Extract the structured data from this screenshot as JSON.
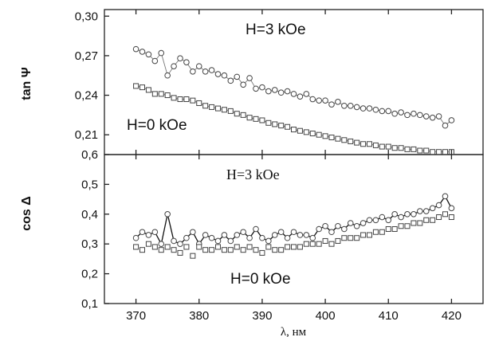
{
  "chart_data": [
    {
      "type": "scatter",
      "ylabel": "tan Ψ",
      "xlim": [
        365,
        425
      ],
      "ylim": [
        0.195,
        0.305
      ],
      "yticks": [
        "0,30",
        "0,27",
        "0,24",
        "0,21"
      ],
      "ytick_values": [
        0.3,
        0.27,
        0.24,
        0.21
      ],
      "annotations": [
        "H=3 kOe",
        "H=0 kOe"
      ],
      "series": [
        {
          "marker": "circle",
          "line": true,
          "x": [
            370,
            371,
            372,
            373,
            374,
            375,
            376,
            377,
            378,
            379,
            380,
            381,
            382,
            383,
            384,
            385,
            386,
            387,
            388,
            389,
            390,
            391,
            392,
            393,
            394,
            395,
            396,
            397,
            398,
            399,
            400,
            401,
            402,
            403,
            404,
            405,
            406,
            407,
            408,
            409,
            410,
            411,
            412,
            413,
            414,
            415,
            416,
            417,
            418,
            419,
            420
          ],
          "values": [
            0.275,
            0.273,
            0.271,
            0.266,
            0.272,
            0.255,
            0.262,
            0.268,
            0.265,
            0.258,
            0.262,
            0.258,
            0.259,
            0.256,
            0.255,
            0.251,
            0.254,
            0.248,
            0.253,
            0.245,
            0.246,
            0.243,
            0.244,
            0.242,
            0.243,
            0.241,
            0.239,
            0.241,
            0.237,
            0.236,
            0.236,
            0.233,
            0.235,
            0.232,
            0.232,
            0.231,
            0.23,
            0.23,
            0.229,
            0.228,
            0.228,
            0.226,
            0.227,
            0.225,
            0.226,
            0.225,
            0.224,
            0.223,
            0.224,
            0.217,
            0.221
          ]
        },
        {
          "marker": "square",
          "line": true,
          "x": [
            370,
            371,
            372,
            373,
            374,
            375,
            376,
            377,
            378,
            379,
            380,
            381,
            382,
            383,
            384,
            385,
            386,
            387,
            388,
            389,
            390,
            391,
            392,
            393,
            394,
            395,
            396,
            397,
            398,
            399,
            400,
            401,
            402,
            403,
            404,
            405,
            406,
            407,
            408,
            409,
            410,
            411,
            412,
            413,
            414,
            415,
            416,
            417,
            418,
            419,
            420
          ],
          "values": [
            0.247,
            0.246,
            0.244,
            0.241,
            0.241,
            0.24,
            0.238,
            0.237,
            0.237,
            0.236,
            0.234,
            0.232,
            0.231,
            0.23,
            0.229,
            0.228,
            0.226,
            0.225,
            0.223,
            0.222,
            0.221,
            0.219,
            0.218,
            0.217,
            0.216,
            0.214,
            0.213,
            0.212,
            0.211,
            0.21,
            0.209,
            0.208,
            0.207,
            0.206,
            0.205,
            0.204,
            0.203,
            0.203,
            0.202,
            0.201,
            0.201,
            0.2,
            0.2,
            0.199,
            0.199,
            0.198,
            0.198,
            0.197,
            0.197,
            0.197,
            0.197
          ]
        }
      ]
    },
    {
      "type": "scatter",
      "ylabel": "cos Δ",
      "xlabel": "λ, нм",
      "xlim": [
        365,
        425
      ],
      "ylim": [
        0.1,
        0.6
      ],
      "yticks": [
        "0,6",
        "0,5",
        "0,4",
        "0,3",
        "0,2",
        "0,1"
      ],
      "ytick_values": [
        0.6,
        0.5,
        0.4,
        0.3,
        0.2,
        0.1
      ],
      "xticks": [
        "370",
        "380",
        "390",
        "400",
        "410",
        "420"
      ],
      "xtick_values": [
        370,
        380,
        390,
        400,
        410,
        420
      ],
      "annotations": [
        "H=3 kOe",
        "H=0 kOe"
      ],
      "series": [
        {
          "marker": "circle",
          "line": true,
          "x": [
            370,
            371,
            372,
            373,
            374,
            375,
            376,
            377,
            378,
            379,
            380,
            381,
            382,
            383,
            384,
            385,
            386,
            387,
            388,
            389,
            390,
            391,
            392,
            393,
            394,
            395,
            396,
            397,
            398,
            399,
            400,
            401,
            402,
            403,
            404,
            405,
            406,
            407,
            408,
            409,
            410,
            411,
            412,
            413,
            414,
            415,
            416,
            417,
            418,
            419,
            420
          ],
          "values": [
            0.32,
            0.34,
            0.33,
            0.34,
            0.3,
            0.4,
            0.31,
            0.3,
            0.32,
            0.34,
            0.3,
            0.33,
            0.32,
            0.31,
            0.33,
            0.31,
            0.33,
            0.34,
            0.32,
            0.35,
            0.32,
            0.31,
            0.33,
            0.34,
            0.32,
            0.34,
            0.33,
            0.33,
            0.32,
            0.35,
            0.36,
            0.34,
            0.36,
            0.35,
            0.37,
            0.36,
            0.37,
            0.38,
            0.38,
            0.39,
            0.38,
            0.4,
            0.39,
            0.4,
            0.4,
            0.41,
            0.41,
            0.42,
            0.43,
            0.46,
            0.42
          ]
        },
        {
          "marker": "square",
          "line": false,
          "x": [
            370,
            371,
            372,
            373,
            374,
            375,
            376,
            377,
            378,
            379,
            380,
            381,
            382,
            383,
            384,
            385,
            386,
            387,
            388,
            389,
            390,
            391,
            392,
            393,
            394,
            395,
            396,
            397,
            398,
            399,
            400,
            401,
            402,
            403,
            404,
            405,
            406,
            407,
            408,
            409,
            410,
            411,
            412,
            413,
            414,
            415,
            416,
            417,
            418,
            419,
            420
          ],
          "values": [
            0.29,
            0.28,
            0.3,
            0.29,
            0.28,
            0.29,
            0.28,
            0.27,
            0.29,
            0.26,
            0.29,
            0.28,
            0.28,
            0.29,
            0.28,
            0.28,
            0.29,
            0.28,
            0.29,
            0.28,
            0.27,
            0.29,
            0.28,
            0.28,
            0.29,
            0.29,
            0.29,
            0.3,
            0.3,
            0.3,
            0.31,
            0.3,
            0.31,
            0.32,
            0.32,
            0.32,
            0.33,
            0.33,
            0.34,
            0.34,
            0.35,
            0.35,
            0.36,
            0.36,
            0.37,
            0.37,
            0.38,
            0.38,
            0.39,
            0.4,
            0.39
          ]
        }
      ]
    }
  ]
}
